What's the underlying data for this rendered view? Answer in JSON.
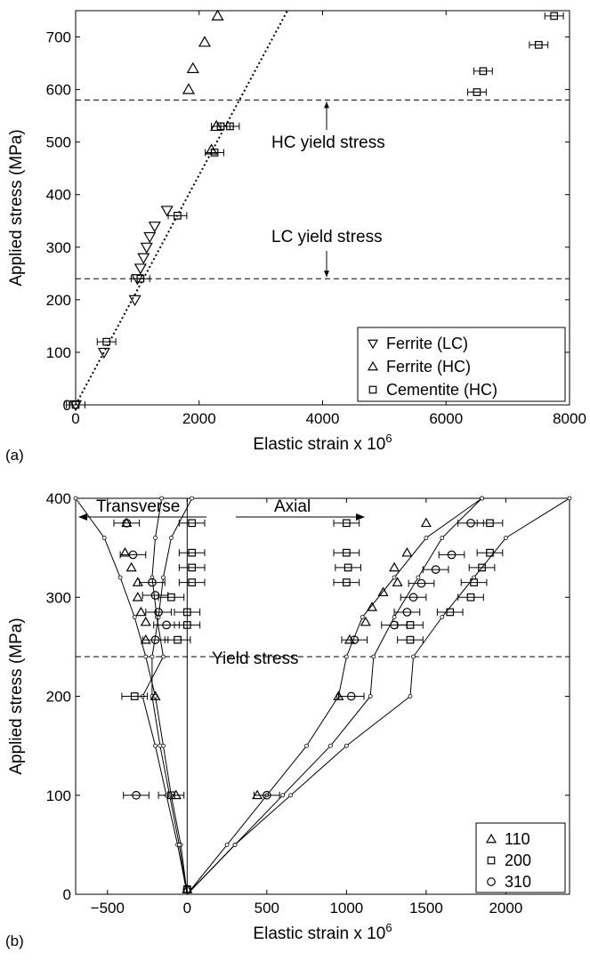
{
  "panel_labels": [
    "(a)",
    "(b)"
  ],
  "chart_data": [
    {
      "type": "scatter",
      "xlabel": "Elastic strain x 10",
      "xlabel_sup": "6",
      "ylabel": "Applied stress (MPa)",
      "xlim": [
        0,
        8000
      ],
      "ylim": [
        0,
        750
      ],
      "xticks": [
        0,
        2000,
        4000,
        6000,
        8000
      ],
      "yticks": [
        0,
        100,
        200,
        300,
        400,
        500,
        600,
        700
      ],
      "legend_position": "bottom-right",
      "series": [
        {
          "name": "Ferrite (LC)",
          "marker": "triangle-down",
          "points": [
            [
              0,
              0
            ],
            [
              460,
              100
            ],
            [
              960,
              200
            ],
            [
              1000,
              240
            ],
            [
              1050,
              260
            ],
            [
              1100,
              280
            ],
            [
              1150,
              300
            ],
            [
              1200,
              320
            ],
            [
              1280,
              340
            ],
            [
              1480,
              370
            ]
          ]
        },
        {
          "name": "Ferrite (HC)",
          "marker": "triangle-up",
          "points": [
            [
              1830,
              600
            ],
            [
              1900,
              640
            ],
            [
              2090,
              690
            ],
            [
              2300,
              740
            ],
            [
              2280,
              530
            ],
            [
              2200,
              485
            ]
          ]
        },
        {
          "name": "Cementite (HC)",
          "marker": "square",
          "error": 150,
          "points": [
            [
              0,
              0
            ],
            [
              500,
              120
            ],
            [
              1050,
              240
            ],
            [
              1650,
              360
            ],
            [
              2250,
              480
            ],
            [
              2350,
              530
            ],
            [
              2500,
              530
            ],
            [
              6500,
              595
            ],
            [
              6600,
              635
            ],
            [
              7500,
              685
            ],
            [
              7750,
              740
            ]
          ]
        }
      ],
      "fit_line": {
        "x": [
          0,
          3430
        ],
        "y": [
          0,
          750
        ]
      },
      "hlines": [
        {
          "y": 580,
          "label": "HC yield stress"
        },
        {
          "y": 240,
          "label": "LC yield stress"
        }
      ]
    },
    {
      "type": "scatter",
      "xlabel": "Elastic strain x 10",
      "xlabel_sup": "6",
      "ylabel": "Applied stress (MPa)",
      "xlim": [
        -700,
        2400
      ],
      "ylim": [
        0,
        400
      ],
      "xticks": [
        -500,
        0,
        500,
        1000,
        1500,
        2000
      ],
      "yticks": [
        0,
        100,
        200,
        300,
        400
      ],
      "legend_position": "bottom-right",
      "annotations": [
        "Transverse",
        "Axial",
        "Yield stress"
      ],
      "yield_stress": 240,
      "series": [
        {
          "name": "110",
          "marker": "triangle-up",
          "points": [
            [
              -200,
              200
            ],
            [
              -70,
              100
            ],
            [
              1500,
              375
            ],
            [
              1380,
              345
            ],
            [
              1300,
              330
            ],
            [
              1320,
              315
            ],
            [
              1230,
              305
            ],
            [
              1160,
              290
            ],
            [
              1120,
              275
            ],
            [
              1020,
              257
            ],
            [
              950,
              200
            ],
            [
              440,
              100
            ],
            [
              -380,
              375
            ],
            [
              -390,
              345
            ],
            [
              -350,
              330
            ],
            [
              -310,
              315
            ],
            [
              -310,
              300
            ],
            [
              -290,
              285
            ],
            [
              -260,
              275
            ],
            [
              -260,
              257
            ],
            [
              0,
              5
            ]
          ]
        },
        {
          "name": "200",
          "marker": "square",
          "error": 80,
          "points": [
            [
              1900,
              375
            ],
            [
              1900,
              345
            ],
            [
              1850,
              330
            ],
            [
              1800,
              315
            ],
            [
              1780,
              300
            ],
            [
              1650,
              285
            ],
            [
              1400,
              272
            ],
            [
              1400,
              257
            ],
            [
              1000,
              375
            ],
            [
              1000,
              345
            ],
            [
              1010,
              330
            ],
            [
              1000,
              315
            ],
            [
              30,
              375
            ],
            [
              30,
              345
            ],
            [
              30,
              330
            ],
            [
              30,
              315
            ],
            [
              -100,
              300
            ],
            [
              0,
              285
            ],
            [
              0,
              272
            ],
            [
              -60,
              257
            ],
            [
              -330,
              200
            ],
            [
              -100,
              100
            ],
            [
              0,
              5
            ]
          ]
        },
        {
          "name": "310",
          "marker": "circle",
          "error": 80,
          "points": [
            [
              1780,
              375
            ],
            [
              1660,
              343
            ],
            [
              1560,
              328
            ],
            [
              1470,
              314
            ],
            [
              1420,
              300
            ],
            [
              1380,
              285
            ],
            [
              1300,
              272
            ],
            [
              1050,
              257
            ],
            [
              1030,
              200
            ],
            [
              500,
              100
            ],
            [
              -380,
              375
            ],
            [
              -340,
              343
            ],
            [
              -220,
              315
            ],
            [
              -200,
              302
            ],
            [
              -180,
              285
            ],
            [
              -130,
              272
            ],
            [
              -200,
              257
            ],
            [
              -320,
              100
            ],
            [
              0,
              5
            ]
          ]
        }
      ],
      "curves": [
        [
          [
            0,
            0
          ],
          [
            250,
            50
          ],
          [
            500,
            100
          ],
          [
            750,
            150
          ],
          [
            950,
            200
          ],
          [
            1000,
            240
          ],
          [
            1100,
            280
          ],
          [
            1300,
            320
          ],
          [
            1500,
            360
          ],
          [
            1850,
            400
          ]
        ],
        [
          [
            0,
            0
          ],
          [
            300,
            50
          ],
          [
            600,
            100
          ],
          [
            900,
            150
          ],
          [
            1150,
            200
          ],
          [
            1170,
            240
          ],
          [
            1300,
            280
          ],
          [
            1450,
            320
          ],
          [
            1600,
            360
          ],
          [
            1850,
            400
          ]
        ],
        [
          [
            0,
            0
          ],
          [
            300,
            50
          ],
          [
            650,
            100
          ],
          [
            1000,
            150
          ],
          [
            1400,
            200
          ],
          [
            1420,
            240
          ],
          [
            1600,
            280
          ],
          [
            1800,
            320
          ],
          [
            2000,
            360
          ],
          [
            2400,
            400
          ]
        ],
        [
          [
            0,
            0
          ],
          [
            -40,
            50
          ],
          [
            -100,
            100
          ],
          [
            -150,
            150
          ],
          [
            -200,
            200
          ],
          [
            -260,
            240
          ],
          [
            -330,
            280
          ],
          [
            -420,
            320
          ],
          [
            -520,
            360
          ],
          [
            -700,
            400
          ]
        ],
        [
          [
            0,
            0
          ],
          [
            -60,
            50
          ],
          [
            -130,
            100
          ],
          [
            -200,
            150
          ],
          [
            -280,
            200
          ],
          [
            -150,
            240
          ],
          [
            -190,
            280
          ],
          [
            -220,
            320
          ],
          [
            -200,
            360
          ],
          [
            -160,
            400
          ]
        ],
        [
          [
            0,
            0
          ],
          [
            -50,
            50
          ],
          [
            -110,
            100
          ],
          [
            -170,
            150
          ],
          [
            -220,
            200
          ],
          [
            -220,
            240
          ],
          [
            -180,
            280
          ],
          [
            -150,
            320
          ],
          [
            -100,
            360
          ],
          [
            30,
            400
          ]
        ]
      ],
      "sample_point_count": [
        5,
        4,
        6,
        6,
        6,
        6
      ]
    }
  ]
}
